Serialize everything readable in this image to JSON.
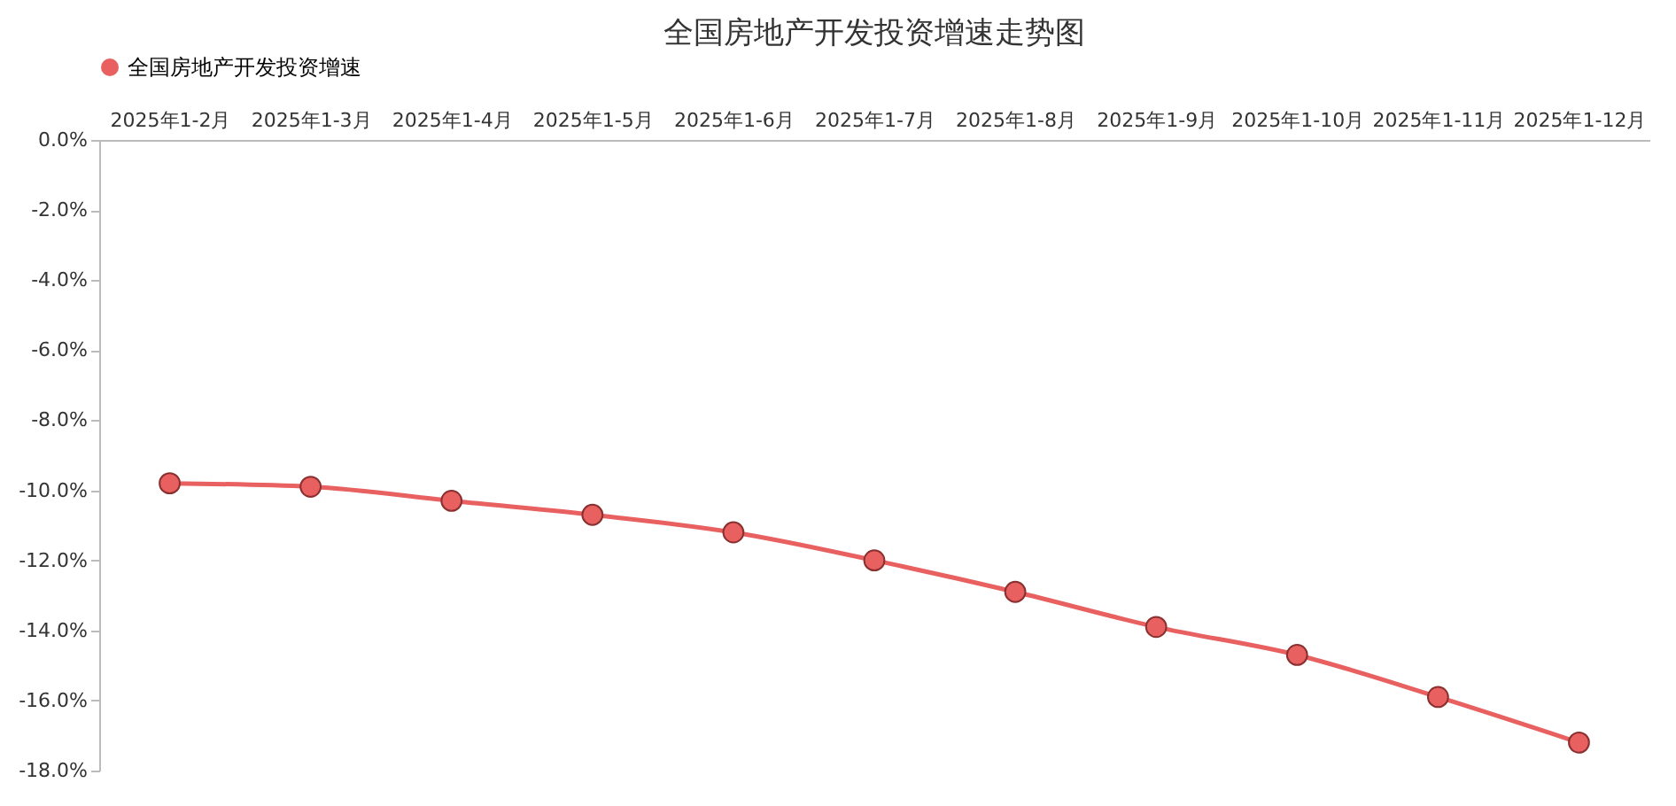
{
  "chart_data": {
    "type": "line",
    "title": "全国房地产开发投资增速走势图",
    "categories": [
      "2025年1-2月",
      "2025年1-3月",
      "2025年1-4月",
      "2025年1-5月",
      "2025年1-6月",
      "2025年1-7月",
      "2025年1-8月",
      "2025年1-9月",
      "2025年1-10月",
      "2025年1-11月",
      "2025年1-12月"
    ],
    "series": [
      {
        "name": "全国房地产开发投资增速",
        "color": "#e86060",
        "values": [
          -9.8,
          -9.9,
          -10.3,
          -10.7,
          -11.2,
          -12.0,
          -12.9,
          -13.9,
          -14.7,
          -15.9,
          -17.2
        ]
      }
    ],
    "ylim": [
      -18,
      0
    ],
    "yticks": [
      {
        "value": 0,
        "label": "0.0%"
      },
      {
        "value": -2,
        "label": "-2.0%"
      },
      {
        "value": -4,
        "label": "-4.0%"
      },
      {
        "value": -6,
        "label": "-6.0%"
      },
      {
        "value": -8,
        "label": "-8.0%"
      },
      {
        "value": -10,
        "label": "-10.0%"
      },
      {
        "value": -12,
        "label": "-12.0%"
      },
      {
        "value": -14,
        "label": "-14.0%"
      },
      {
        "value": -16,
        "label": "-16.0%"
      },
      {
        "value": -18,
        "label": "-18.0%"
      }
    ],
    "legend": "top",
    "marker": "circle",
    "line_style": "solid",
    "grid": false
  }
}
